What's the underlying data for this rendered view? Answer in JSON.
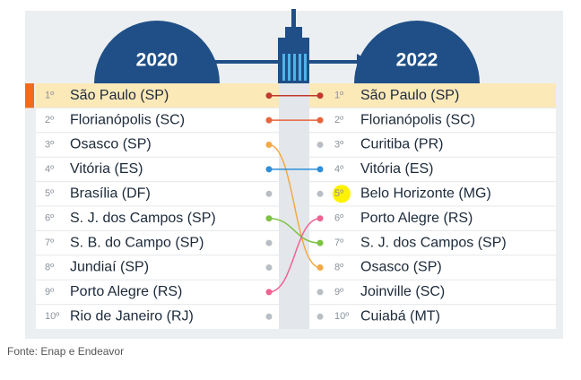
{
  "header": {
    "left_year": "2020",
    "right_year": "2022"
  },
  "left": [
    {
      "rank": "1º",
      "city": "São Paulo (SP)",
      "dot_color": "#c0392b"
    },
    {
      "rank": "2º",
      "city": "Florianópolis (SC)",
      "dot_color": "#e8643c"
    },
    {
      "rank": "3º",
      "city": "Osasco (SP)",
      "dot_color": "#f5a843"
    },
    {
      "rank": "4º",
      "city": "Vitória (ES)",
      "dot_color": "#2f8fd8"
    },
    {
      "rank": "5º",
      "city": "Brasília (DF)",
      "dot_color": "#b9bec4"
    },
    {
      "rank": "6º",
      "city": "S. J. dos Campos (SP)",
      "dot_color": "#7dc243"
    },
    {
      "rank": "7º",
      "city": "S. B. do Campo (SP)",
      "dot_color": "#b9bec4"
    },
    {
      "rank": "8º",
      "city": "Jundiaí (SP)",
      "dot_color": "#b9bec4"
    },
    {
      "rank": "9º",
      "city": "Porto Alegre (RS)",
      "dot_color": "#f06292"
    },
    {
      "rank": "10º",
      "city": "Rio de Janeiro (RJ)",
      "dot_color": "#b9bec4"
    }
  ],
  "right": [
    {
      "rank": "1º",
      "city": "São Paulo (SP)",
      "dot_color": "#c0392b"
    },
    {
      "rank": "2º",
      "city": "Florianópolis (SC)",
      "dot_color": "#e8643c"
    },
    {
      "rank": "3º",
      "city": "Curitiba (PR)",
      "dot_color": "#b9bec4"
    },
    {
      "rank": "4º",
      "city": "Vitória (ES)",
      "dot_color": "#2f8fd8"
    },
    {
      "rank": "5º",
      "city": "Belo Horizonte (MG)",
      "dot_color": "#b9bec4"
    },
    {
      "rank": "6º",
      "city": "Porto Alegre (RS)",
      "dot_color": "#f06292"
    },
    {
      "rank": "7º",
      "city": "S. J. dos Campos (SP)",
      "dot_color": "#7dc243"
    },
    {
      "rank": "8º",
      "city": "Osasco (SP)",
      "dot_color": "#f5a843"
    },
    {
      "rank": "9º",
      "city": "Joinville (SC)",
      "dot_color": "#b9bec4"
    },
    {
      "rank": "10º",
      "city": "Cuiabá (MT)",
      "dot_color": "#b9bec4"
    }
  ],
  "source": "Fonte: Enap e Endeavor"
}
